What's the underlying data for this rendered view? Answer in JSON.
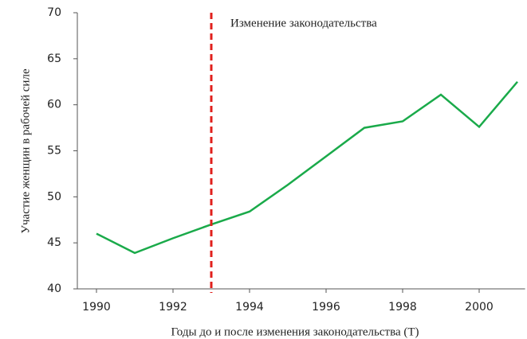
{
  "chart_data": {
    "type": "line",
    "x_label": "Годы до и после изменения законодательства (T)",
    "y_label": "Участие женщин в рабочей силе",
    "x": [
      1990,
      1991,
      1992,
      1993,
      1994,
      1995,
      1996,
      1997,
      1998,
      1999,
      2000,
      2001
    ],
    "series": [
      {
        "color": "#1aaa4a",
        "values": [
          46,
          43.9,
          45.5,
          47,
          48.4,
          51.3,
          54.4,
          57.5,
          58.2,
          61.1,
          57.6,
          62.5
        ]
      }
    ],
    "annotations": [
      {
        "text": "Изменение законодательства",
        "x": 1993,
        "color": "#e0201c"
      }
    ],
    "xlim": [
      1989.5,
      2001.2
    ],
    "xticks": [
      1990,
      1992,
      1994,
      1996,
      1998,
      2000
    ],
    "ylim": [
      40,
      70
    ],
    "yticks": [
      40,
      45,
      50,
      55,
      60,
      65,
      70
    ],
    "grid": false
  }
}
